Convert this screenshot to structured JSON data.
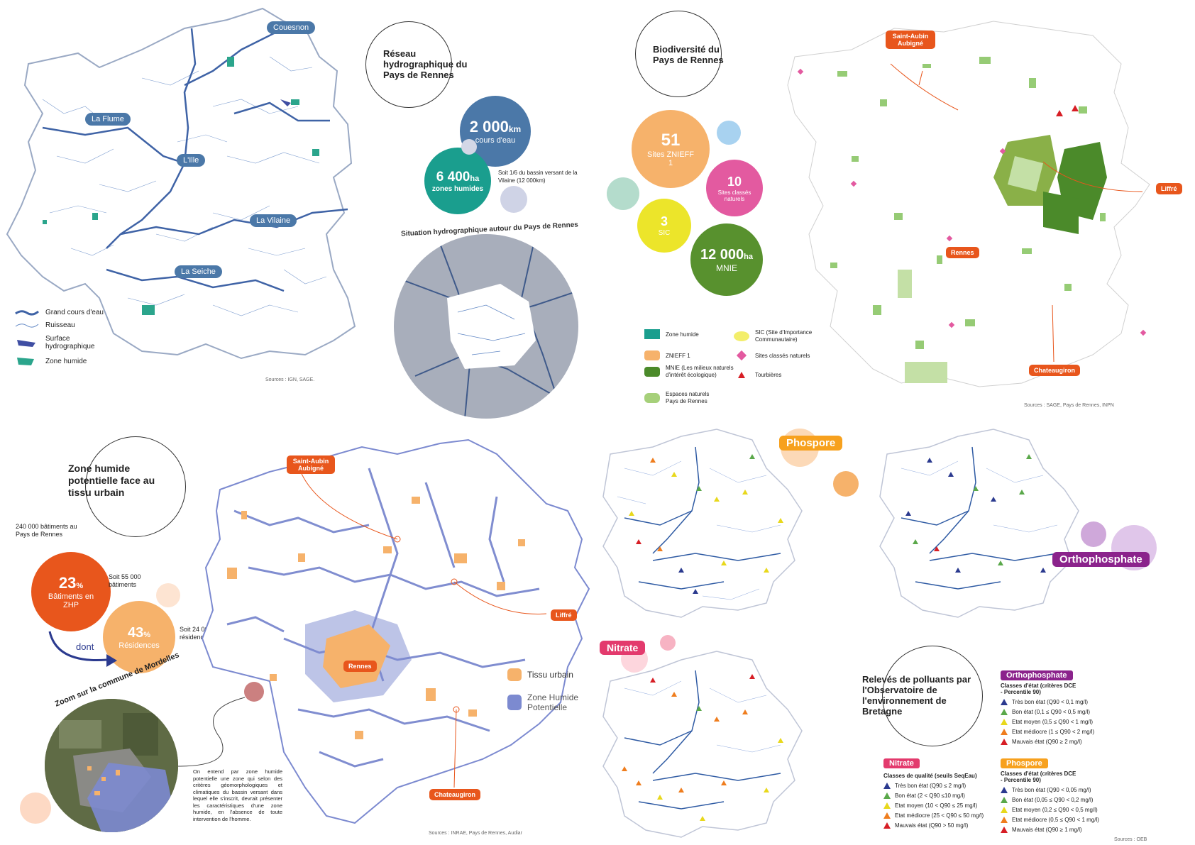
{
  "hydro": {
    "title": "Réseau hydrographique du Pays de Rennes",
    "rivers": [
      "Couesnon",
      "La Flume",
      "L'Ille",
      "La Vilaine",
      "La Seiche"
    ],
    "stat_km_value": "2 000",
    "stat_km_unit": "km",
    "stat_km_label": "cours d'eau",
    "stat_ha_value": "6 400",
    "stat_ha_unit": "ha",
    "stat_ha_label": "zones humides",
    "stat_note": "Soit 1/6 du bassin versant de la Vilaine (12 000km)",
    "situation_title": "Situation hydrographique autour du Pays de Rennes",
    "legend": [
      "Grand cours d'eau",
      "Ruisseau",
      "Surface hydrographique",
      "Zone humide"
    ],
    "source": "Sources : IGN, SAGE."
  },
  "bio": {
    "title": "Biodiversité du Pays de Rennes",
    "znieff_value": "51",
    "znieff_label": "Sites ZNIEFF 1",
    "sites_value": "10",
    "sites_label": "Sites classés naturels",
    "sic_value": "3",
    "sic_label": "SIC",
    "mnie_value": "12 000",
    "mnie_unit": "ha",
    "mnie_label": "MNIE",
    "legend": [
      "Zone humide",
      "ZNIEFF 1",
      "MNIE (Les milieux naturels d'intérêt écologique)",
      "Espaces naturels Pays de Rennes",
      "SIC (Site d'Importance Communautaire)",
      "Sites classés naturels",
      "Tourbières"
    ],
    "places": [
      "Saint-Aubin Aubigné",
      "Liffré",
      "Rennes",
      "Chateaugiron"
    ],
    "source": "Sources : SAGE, Pays de Rennes, INPN"
  },
  "zhp": {
    "title": "Zone humide potentielle face au tissu urbain",
    "bat_total": "240 000 bâtiments au Pays de Rennes",
    "pct1_value": "23",
    "pct1_label": "Bâtiments en ZHP",
    "pct1_note": "Soit 55 000 bâtiments",
    "dont": "dont",
    "pct2_value": "43",
    "pct2_label": "Résidences",
    "pct2_note": "Soit 24 000 résidences",
    "pct_unit": "%",
    "zoom_title": "Zoom sur la commune de Mordelles",
    "definition": "On entend par zone humide potentielle une zone qui selon des critères géomorphologiques et climatiques du bassin versant dans lequel elle s'inscrit, devrait présenter les caractéristiques d'une zone humide, en l'absence de toute intervention de l'homme.",
    "legend": [
      "Tissu urbain",
      "Zone Humide Potentielle"
    ],
    "places": [
      "Saint-Aubin Aubigné",
      "Liffré",
      "Rennes",
      "Chateaugiron"
    ],
    "source": "Sources : INRAE, Pays de Rennes, Audiar"
  },
  "pollutants": {
    "phospore_label": "Phospore",
    "ortho_label": "Orthophosphate",
    "nitrate_label": "Nitrate",
    "title": "Relevés de polluants par l'Observatoire de l'environnement de Bretagne",
    "ortho_legend": {
      "heading": "Orthophosphate",
      "sub": "Classes d'état (critères DCE - Percentile 90)",
      "items": [
        "Très bon état (Q90 < 0,1 mg/l)",
        "Bon état (0,1 ≤ Q90 < 0,5 mg/l)",
        "Etat moyen (0,5 ≤ Q90 < 1 mg/l)",
        "Etat médiocre (1 ≤ Q90 < 2 mg/l)",
        "Mauvais état (Q90 ≥ 2 mg/l)"
      ]
    },
    "nitrate_legend": {
      "heading": "Nitrate",
      "sub": "Classes de qualité (seuils SeqEau)",
      "items": [
        "Très bon état (Q90 ≤ 2 mg/l)",
        "Bon état (2 < Q90 ≤10 mg/l)",
        "Etat moyen (10 < Q90 ≤ 25 mg/l)",
        "Etat médiocre (25 < Q90 ≤ 50 mg/l)",
        "Mauvais état (Q90 > 50 mg/l)"
      ]
    },
    "phospore_legend": {
      "heading": "Phospore",
      "sub": "Classes d'état (critères DCE - Percentile 90)",
      "items": [
        "Très bon état (Q90 < 0,05 mg/l)",
        "Bon état (0,05 ≤ Q90 < 0,2 mg/l)",
        "Etat moyen (0,2 ≤ Q90 < 0,5 mg/l)",
        "Etat médiocre (0,5 ≤ Q90 < 1 mg/l)",
        "Mauvais état (Q90 ≥ 1 mg/l)"
      ]
    },
    "quality_colors": [
      "#2b3a8f",
      "#5aa84a",
      "#e8d81c",
      "#ef7d1e",
      "#d71e25"
    ],
    "source": "Sources : OEB"
  }
}
